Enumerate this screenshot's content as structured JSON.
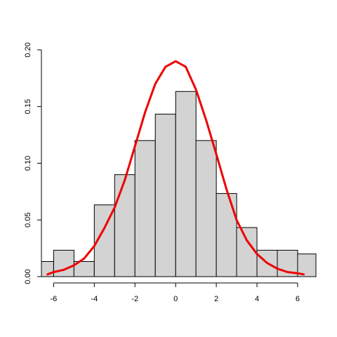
{
  "chart_data": {
    "type": "bar",
    "subtype": "histogram-with-density-curve",
    "title": "",
    "xlabel": "",
    "ylabel": "",
    "xlim": [
      -6.6,
      6.9
    ],
    "ylim": [
      0,
      0.2
    ],
    "x_ticks": [
      -6,
      -4,
      -2,
      0,
      2,
      4,
      6
    ],
    "x_tick_labels": [
      "-6",
      "-4",
      "-2",
      "0",
      "2",
      "4",
      "6"
    ],
    "y_ticks": [
      0,
      0.05,
      0.1,
      0.15,
      0.2
    ],
    "y_tick_labels": [
      "0.00",
      "0.05",
      "0.10",
      "0.15",
      "0.20"
    ],
    "grid": false,
    "bin_width": 1,
    "bins": [
      {
        "x0": -7,
        "x1": -6,
        "value": 0.0133
      },
      {
        "x0": -6,
        "x1": -5,
        "value": 0.0233
      },
      {
        "x0": -5,
        "x1": -4,
        "value": 0.0133
      },
      {
        "x0": -4,
        "x1": -3,
        "value": 0.0633
      },
      {
        "x0": -3,
        "x1": -2,
        "value": 0.09
      },
      {
        "x0": -2,
        "x1": -1,
        "value": 0.12
      },
      {
        "x0": -1,
        "x1": 0,
        "value": 0.1433
      },
      {
        "x0": 0,
        "x1": 1,
        "value": 0.1633
      },
      {
        "x0": 1,
        "x1": 2,
        "value": 0.12
      },
      {
        "x0": 2,
        "x1": 3,
        "value": 0.0733
      },
      {
        "x0": 3,
        "x1": 4,
        "value": 0.0433
      },
      {
        "x0": 4,
        "x1": 5,
        "value": 0.0233
      },
      {
        "x0": 5,
        "x1": 6,
        "value": 0.0233
      },
      {
        "x0": 6,
        "x1": 7,
        "value": 0.02
      }
    ],
    "density_curve": {
      "color": "#ee0000",
      "x": [
        -6.3,
        -6,
        -5.5,
        -5,
        -4.5,
        -4,
        -3.5,
        -3,
        -2.5,
        -2,
        -1.5,
        -1,
        -0.5,
        0,
        0.5,
        1,
        1.5,
        2,
        2.5,
        3,
        3.5,
        4,
        4.5,
        5,
        5.5,
        6,
        6.3
      ],
      "y": [
        0.002,
        0.004,
        0.006,
        0.01,
        0.016,
        0.027,
        0.043,
        0.061,
        0.085,
        0.115,
        0.145,
        0.17,
        0.185,
        0.19,
        0.185,
        0.165,
        0.138,
        0.108,
        0.077,
        0.05,
        0.032,
        0.02,
        0.012,
        0.007,
        0.004,
        0.003,
        0.002
      ]
    },
    "colors": {
      "bar_fill": "#d3d3d3",
      "bar_stroke": "#000000",
      "axis": "#000000"
    }
  }
}
